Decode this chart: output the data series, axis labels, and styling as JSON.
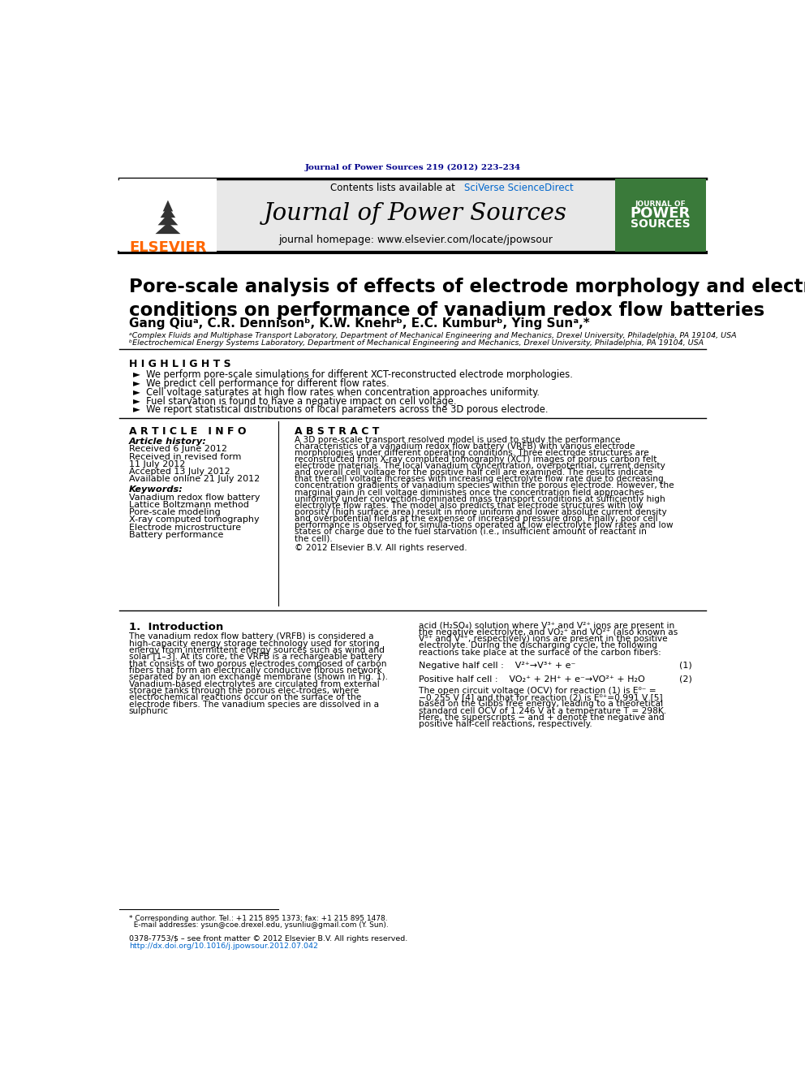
{
  "journal_ref": "Journal of Power Sources 219 (2012) 223–234",
  "contents_text": "Contents lists available at",
  "sciverse_text": "SciVerse ScienceDirect",
  "journal_title": "Journal of Power Sources",
  "journal_homepage": "journal homepage: www.elsevier.com/locate/jpowsour",
  "paper_title": "Pore-scale analysis of effects of electrode morphology and electrolyte flow\nconditions on performance of vanadium redox flow batteries",
  "authors": "Gang Qiuᵃ, C.R. Dennisonᵇ, K.W. Knehrᵇ, E.C. Kumburᵇ, Ying Sunᵃ,*",
  "affil_a": "ᵃComplex Fluids and Multiphase Transport Laboratory, Department of Mechanical Engineering and Mechanics, Drexel University, Philadelphia, PA 19104, USA",
  "affil_b": "ᵇElectrochemical Energy Systems Laboratory, Department of Mechanical Engineering and Mechanics, Drexel University, Philadelphia, PA 19104, USA",
  "highlights_title": "H I G H L I G H T S",
  "highlights": [
    "We perform pore-scale simulations for different XCT-reconstructed electrode morphologies.",
    "We predict cell performance for different flow rates.",
    "Cell voltage saturates at high flow rates when concentration approaches uniformity.",
    "Fuel starvation is found to have a negative impact on cell voltage.",
    "We report statistical distributions of local parameters across the 3D porous electrode."
  ],
  "article_info_title": "A R T I C L E   I N F O",
  "article_history_title": "Article history:",
  "received": "Received 6 June 2012",
  "received_revised": "Received in revised form",
  "received_revised2": "11 July 2012",
  "accepted": "Accepted 13 July 2012",
  "available": "Available online 21 July 2012",
  "keywords_title": "Keywords:",
  "keywords": [
    "Vanadium redox flow battery",
    "Lattice Boltzmann method",
    "Pore-scale modeling",
    "X-ray computed tomography",
    "Electrode microstructure",
    "Battery performance"
  ],
  "abstract_title": "A B S T R A C T",
  "abstract": "A 3D pore-scale transport resolved model is used to study the performance characteristics of a vanadium redox flow battery (VRFB) with various electrode morphologies under different operating conditions. Three electrode structures are reconstructed from X-ray computed tomography (XCT) images of porous carbon felt electrode materials. The local vanadium concentration, overpotential, current density and overall cell voltage for the positive half cell are examined. The results indicate that the cell voltage increases with increasing electrolyte flow rate due to decreasing concentration gradients of vanadium species within the porous electrode. However, the marginal gain in cell voltage diminishes once the concentration field approaches uniformity under convection-dominated mass transport conditions at sufficiently high electrolyte flow rates. The model also predicts that electrode structures with low porosity (high surface area) result in more uniform and lower absolute current density and overpotential fields at the expense of increased pressure drop. Finally, poor cell performance is observed for simula-tions operated at low electrolyte flow rates and low states of charge due to the fuel starvation (i.e., insufficient amount of reactant in the cell).",
  "copyright": "© 2012 Elsevier B.V. All rights reserved.",
  "intro_title": "1.  Introduction",
  "intro_text1": "The vanadium redox flow battery (VRFB) is considered a high-capacity energy storage technology used for storing energy from intermittent energy sources such as wind and solar [1–3]. At its core, the VRFB is a rechargeable battery that consists of two porous electrodes composed of carbon fibers that form an electrically conductive fibrous network separated by an ion exchange membrane (shown in Fig. 1). Vanadium-based electrolytes are circulated from external storage tanks through the porous elec-trodes, where electrochemical reactions occur on the surface of the electrode fibers. The vanadium species are dissolved in a sulphuric",
  "intro_text2_right": "acid (H₂SO₄) solution where V³⁺ and V²⁺ ions are present in the negative electrolyte, and VO₂⁺ and VO²⁺ (also known as V⁵⁺ and V⁴⁺, respectively) ions are present in the positive electrolyte. During the discharging cycle, the following reactions take place at the surface of the carbon fibers:",
  "neg_half_cell": "Negative half cell :    V²⁺→V³⁺ + e⁻",
  "neg_eq_num": "(1)",
  "pos_half_cell": "Positive half cell :    VO₂⁺ + 2H⁺ + e⁻→VO²⁺ + H₂O",
  "pos_eq_num": "(2)",
  "ocv_text": "The open circuit voltage (OCV) for reaction (1) is E⁰⁻ = −0.255 V [4] and that for reaction (2) is E⁰⁺=0.991 V [5] based on the Gibbs free energy, leading to a theoretical standard cell OCV of 1.246 V at a temperature T = 298K. Here, the superscripts − and + denote the negative and positive half-cell reactions, respectively.",
  "footnote_line1": "* Corresponding author. Tel.: +1 215 895 1373; fax: +1 215 895 1478.",
  "footnote_line2": "  E-mail addresses: ysun@coe.drexel.edu, ysunliu@gmail.com (Y. Sun).",
  "issn_text": "0378-7753/$ – see front matter © 2012 Elsevier B.V. All rights reserved.",
  "doi_text": "http://dx.doi.org/10.1016/j.jpowsour.2012.07.042",
  "elsevier_color": "#FF6600",
  "dark_blue": "#00008B",
  "sciverse_blue": "#0066CC",
  "header_bg": "#E8E8E8",
  "black": "#000000",
  "journal_cover_bg": "#3A7A3A"
}
